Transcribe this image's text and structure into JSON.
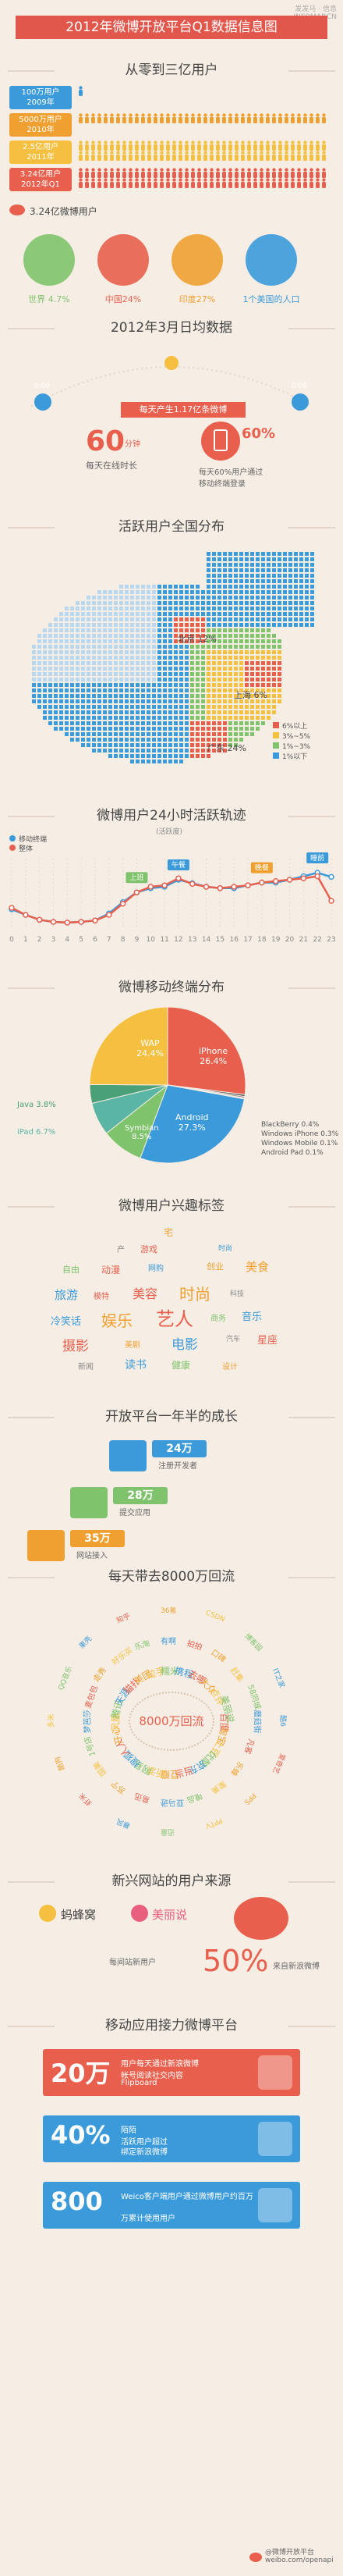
{
  "header": {
    "title": "2012年微博开放平台Q1数据信息图",
    "logo": "发发马 · 信息\nINFOMAP.CN"
  },
  "s1": {
    "title": "从零到三亿用户",
    "rows": [
      {
        "label": "100万用户\n2009年",
        "color": "#3b9ad9"
      },
      {
        "label": "5000万用户\n2010年",
        "color": "#f0a030"
      },
      {
        "label": "2.5亿用户\n2011年",
        "color": "#f5c040"
      },
      {
        "label": "3.24亿用户\n2012年Q1",
        "color": "#e8604d"
      }
    ],
    "total_label": "3.24亿微博用户",
    "circles": [
      {
        "label": "世界 4.7%",
        "color": "#7fc36c",
        "text_color": "#7fc36c",
        "icon": "world-map-icon"
      },
      {
        "label": "中国24%",
        "color": "#e8604d",
        "text_color": "#e8604d",
        "icon": "china-map-icon"
      },
      {
        "label": "印度27%",
        "color": "#f0a030",
        "text_color": "#f0a030",
        "icon": "india-map-icon"
      },
      {
        "label": "1个美国的人口",
        "color": "#3b9ad9",
        "text_color": "#3b9ad9",
        "icon": "usa-map-icon"
      }
    ]
  },
  "s2": {
    "title": "2012年3月日均数据",
    "left_label": "0:00",
    "right_label": "0:00",
    "banner": "每天产生1.17亿条微博",
    "minutes_value": "60",
    "minutes_unit": "分钟",
    "minutes_sub": "每天在线时长",
    "mobile_value": "60%",
    "mobile_sub": "每天60%用户通过\n移动终端登录"
  },
  "s3": {
    "title": "活跃用户全国分布",
    "beijing": "北京 12%",
    "shanghai": "上海 6%",
    "guangdong": "广东 24%",
    "legend": [
      {
        "label": "6%以上",
        "color": "#e8604d"
      },
      {
        "label": "3%~5%",
        "color": "#f5c040"
      },
      {
        "label": "1%~3%",
        "color": "#7fc36c"
      },
      {
        "label": "1%以下",
        "color": "#3b9ad9"
      }
    ]
  },
  "chart_data": [
    {
      "type": "line",
      "title": "微博用户24小时活跃轨迹",
      "subtitle": "(活跃度)",
      "x": [
        0,
        1,
        2,
        3,
        4,
        5,
        6,
        7,
        8,
        9,
        10,
        11,
        12,
        13,
        14,
        15,
        16,
        17,
        18,
        19,
        20,
        21,
        22,
        23
      ],
      "series": [
        {
          "name": "移动终端",
          "color": "#3b9ad9",
          "values": [
            28,
            20,
            13,
            10,
            9,
            10,
            12,
            22,
            38,
            52,
            58,
            60,
            70,
            65,
            60,
            58,
            58,
            62,
            66,
            66,
            70,
            75,
            80,
            74
          ]
        },
        {
          "name": "整体",
          "color": "#e8604d",
          "values": [
            30,
            20,
            13,
            10,
            9,
            10,
            12,
            20,
            36,
            52,
            60,
            62,
            72,
            64,
            60,
            58,
            60,
            62,
            66,
            68,
            70,
            72,
            75,
            40
          ]
        }
      ],
      "annotations": [
        "上班",
        "午餐",
        "晚餐",
        "睡前"
      ],
      "ylim": [
        0,
        100
      ]
    },
    {
      "type": "pie",
      "title": "微博移动终端分布",
      "slices": [
        {
          "label": "iPhone",
          "value": 26.4,
          "color": "#e8604d"
        },
        {
          "label": "BlackBerry",
          "value": 0.4,
          "color": "#555555"
        },
        {
          "label": "Windows Phone",
          "value": 0.3,
          "color": "#777777"
        },
        {
          "label": "Windows Mobile",
          "value": 0.1,
          "color": "#999999"
        },
        {
          "label": "Android Pad",
          "value": 0.1,
          "color": "#bbbbbb"
        },
        {
          "label": "Android",
          "value": 27.3,
          "color": "#3b9ad9"
        },
        {
          "label": "Symbian",
          "value": 8.5,
          "color": "#7fc36c"
        },
        {
          "label": "iPad",
          "value": 6.7,
          "color": "#5bb5a5"
        },
        {
          "label": "Java",
          "value": 3.8,
          "color": "#4aa078"
        },
        {
          "label": "WAP",
          "value": 24.4,
          "color": "#f5c040"
        }
      ],
      "labels": {
        "iphone": "iPhone\n26.4%",
        "android": "Android\n27.3%",
        "symbian": "Symbian\n8.5%",
        "wap": "WAP\n24.4%",
        "java": "Java 3.8%",
        "ipad": "iPad 6.7%",
        "others": [
          "BlackBerry 0.4%",
          "Windows iPhone 0.3%",
          "Windows Mobile 0.1%",
          "Android Pad 0.1%"
        ]
      }
    }
  ],
  "s6": {
    "title": "微博用户兴趣标签",
    "words": [
      {
        "t": "宅",
        "c": "#f0a030",
        "s": 12
      },
      {
        "t": "产",
        "c": "#888",
        "s": 10
      },
      {
        "t": "游戏",
        "c": "#e8604d",
        "s": 11
      },
      {
        "t": "时尚",
        "c": "#3b9ad9",
        "s": 9
      },
      {
        "t": "自由",
        "c": "#7fc36c",
        "s": 11
      },
      {
        "t": "动漫",
        "c": "#e8604d",
        "s": 12
      },
      {
        "t": "网购",
        "c": "#3b9ad9",
        "s": 10
      },
      {
        "t": "创业",
        "c": "#f0a030",
        "s": 11
      },
      {
        "t": "美食",
        "c": "#f0a030",
        "s": 15
      },
      {
        "t": "旅游",
        "c": "#3b9ad9",
        "s": 15
      },
      {
        "t": "模特",
        "c": "#e8604d",
        "s": 10
      },
      {
        "t": "美容",
        "c": "#e8604d",
        "s": 16
      },
      {
        "t": "时尚",
        "c": "#f0a030",
        "s": 20
      },
      {
        "t": "科技",
        "c": "#888",
        "s": 9
      },
      {
        "t": "冷笑话",
        "c": "#3b9ad9",
        "s": 13
      },
      {
        "t": "娱乐",
        "c": "#f0a030",
        "s": 20
      },
      {
        "t": "艺人",
        "c": "#e8604d",
        "s": 24
      },
      {
        "t": "商务",
        "c": "#7fc36c",
        "s": 10
      },
      {
        "t": "音乐",
        "c": "#3b9ad9",
        "s": 13
      },
      {
        "t": "摄影",
        "c": "#e8604d",
        "s": 17
      },
      {
        "t": "美剧",
        "c": "#f0a030",
        "s": 10
      },
      {
        "t": "电影",
        "c": "#3b9ad9",
        "s": 17
      },
      {
        "t": "汽车",
        "c": "#888",
        "s": 9
      },
      {
        "t": "星座",
        "c": "#e8604d",
        "s": 13
      },
      {
        "t": "新闻",
        "c": "#888",
        "s": 10
      },
      {
        "t": "读书",
        "c": "#3b9ad9",
        "s": 14
      },
      {
        "t": "健康",
        "c": "#7fc36c",
        "s": 12
      },
      {
        "t": "设计",
        "c": "#f0a030",
        "s": 10
      }
    ]
  },
  "s7": {
    "title": "开放平台一年半的成长",
    "items": [
      {
        "value": "24万",
        "sub": "注册开发者",
        "color": "#3b9ad9",
        "icon": "users-icon"
      },
      {
        "value": "28万",
        "sub": "提交应用",
        "color": "#7fc36c",
        "icon": "puzzle-icon"
      },
      {
        "value": "35万",
        "sub": "网站接入",
        "color": "#f0a030",
        "icon": "monitor-icon"
      }
    ]
  },
  "s8": {
    "title": "每天带去8000万回流",
    "center": "8000万回流",
    "words": [
      "百度",
      "淘宝",
      "土豆",
      "优酷",
      "京东",
      "当当",
      "豆瓣",
      "新浪",
      "网易",
      "搜狐",
      "人人",
      "开心",
      "凤凰",
      "腾讯",
      "天涯",
      "猫扑",
      "美团",
      "拉手",
      "糯米",
      "携程",
      "去哪",
      "大众",
      "点评",
      "美丽说",
      "蘑菇街",
      "凡客",
      "乐蜂",
      "聚美",
      "唯品",
      "亚马逊",
      "易迅",
      "苏宁",
      "国美",
      "1号店",
      "梦芭莎",
      "麦包包",
      "走秀",
      "好乐买",
      "乐淘",
      "有啊",
      "拍拍",
      "口碑",
      "赶集",
      "58同城",
      "酷6",
      "爱奇艺",
      "PPS",
      "PPTV",
      "迅雷",
      "暴风",
      "虾米",
      "酷狗",
      "多米",
      "QQ音乐",
      "果壳",
      "知乎",
      "36氪",
      "CSDN",
      "博客园",
      "IT之家"
    ],
    "colors": [
      "#e8604d",
      "#f0a030",
      "#f5c040",
      "#7fc36c",
      "#3b9ad9"
    ]
  },
  "s9": {
    "title": "新兴网站的用户来源",
    "logo1": "蚂蜂窝",
    "logo2": "美丽说",
    "pct": "50%",
    "sub_left": "每间站新用户",
    "sub_right": "来自新浪微博"
  },
  "s10": {
    "title": "移动应用接力微博平台",
    "rows": [
      {
        "big": "20万",
        "text": "用户每天通过新浪微博\n帐号阅读社交内容",
        "app": "Flipboard",
        "color": "#e8604d"
      },
      {
        "big": "40%",
        "text": "陌陌\n活跃用户超过",
        "app": "绑定新浪微博",
        "color": "#3b9ad9"
      },
      {
        "big": "800",
        "text": "Weico客户端用户通过微博用户约百万",
        "app": "万累计使用用户",
        "color": "#3b9ad9"
      }
    ],
    "footer": "@微博开放平台\nweibo.com/openapi"
  }
}
